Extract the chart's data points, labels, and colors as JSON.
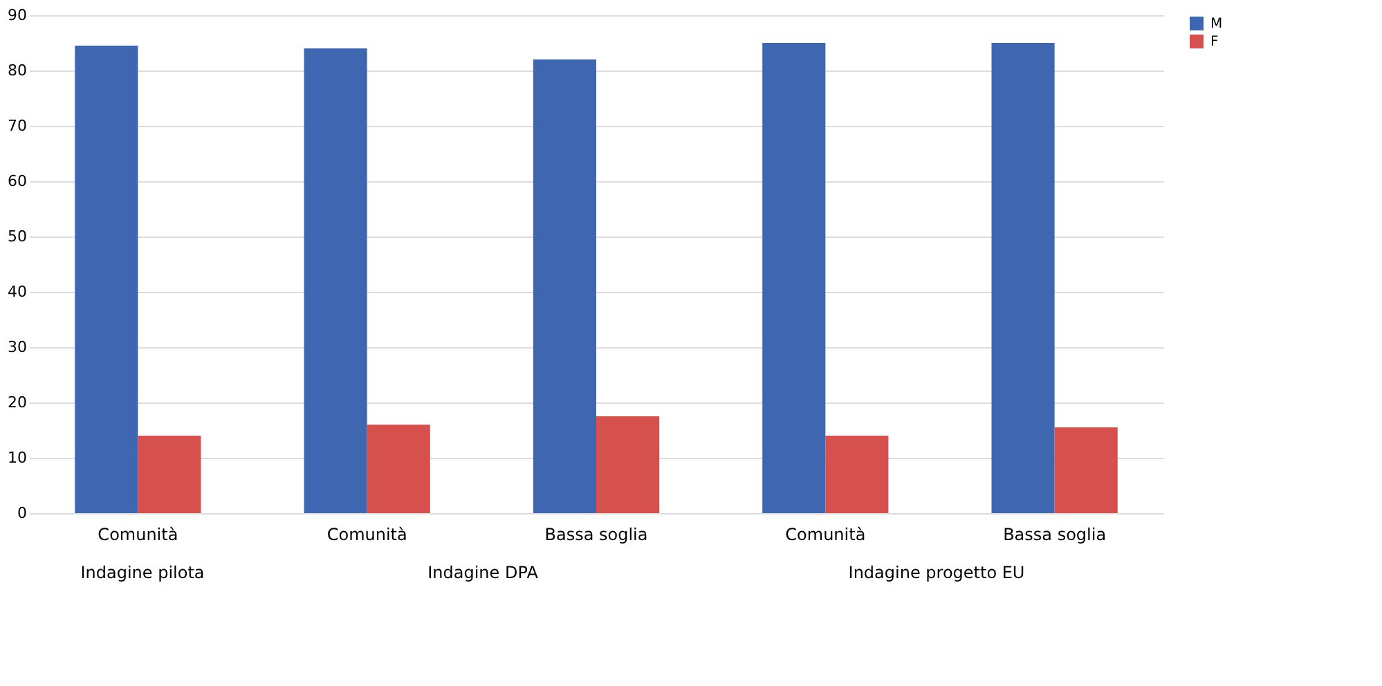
{
  "chart_data": {
    "type": "bar",
    "categories": [
      "Comunità",
      "Comunità",
      "Bassa soglia",
      "Comunità",
      "Bassa soglia"
    ],
    "series": [
      {
        "name": "M",
        "color": "#3f66b0",
        "values": [
          84.5,
          84,
          82,
          85,
          85
        ]
      },
      {
        "name": "F",
        "color": "#d6504e",
        "values": [
          14,
          16,
          17.5,
          14,
          15.5
        ]
      }
    ],
    "annotations": [
      "Indagine pilota",
      "Indagine DPA",
      "Indagine progetto EU"
    ],
    "ylim": [
      0,
      90
    ],
    "yticks": [
      0,
      10,
      20,
      30,
      40,
      50,
      60,
      70,
      80,
      90
    ],
    "grid": "y",
    "legend": "right"
  }
}
